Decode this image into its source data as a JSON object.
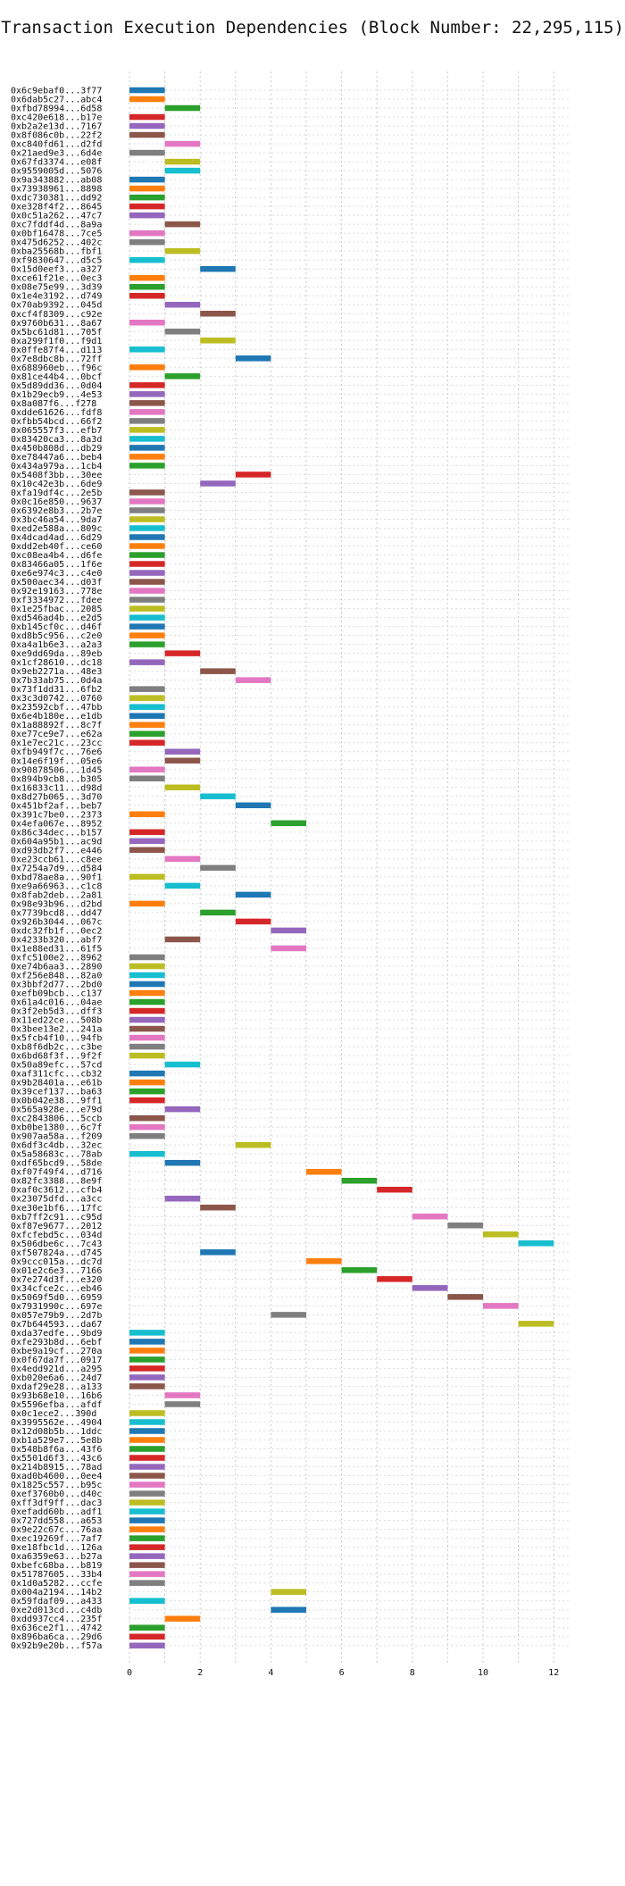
{
  "chart_data": {
    "type": "gantt",
    "title": "Transaction Execution Dependencies (Block Number: 22,295,115)",
    "xlim": [
      0,
      12.5
    ],
    "xticks": [
      0,
      2,
      4,
      6,
      8,
      10,
      12
    ],
    "grid": true,
    "palette": [
      "#1f77b4",
      "#ff7f0e",
      "#2ca02c",
      "#d62728",
      "#9467bd",
      "#8c564b",
      "#e377c2",
      "#7f7f7f",
      "#bcbd22",
      "#17becf"
    ],
    "transactions": [
      {
        "tx": "0x6c9ebaf0...3f77",
        "start": 0,
        "end": 1
      },
      {
        "tx": "0x6dab5c27...abc4",
        "start": 0,
        "end": 1
      },
      {
        "tx": "0xfbd78994...6d58",
        "start": 1,
        "end": 2
      },
      {
        "tx": "0xc420e618...b17e",
        "start": 0,
        "end": 1
      },
      {
        "tx": "0xb2a2e13d...7167",
        "start": 0,
        "end": 1
      },
      {
        "tx": "0x8f086c0b...22f2",
        "start": 0,
        "end": 1
      },
      {
        "tx": "0xc840fd61...d2fd",
        "start": 1,
        "end": 2
      },
      {
        "tx": "0x21aed9e3...6d4e",
        "start": 0,
        "end": 1
      },
      {
        "tx": "0x67fd3374...e08f",
        "start": 1,
        "end": 2
      },
      {
        "tx": "0x9559005d...5076",
        "start": 1,
        "end": 2
      },
      {
        "tx": "0x9a343882...ab08",
        "start": 0,
        "end": 1
      },
      {
        "tx": "0x73938961...8898",
        "start": 0,
        "end": 1
      },
      {
        "tx": "0xdc730381...dd92",
        "start": 0,
        "end": 1
      },
      {
        "tx": "0xe328f4f2...8645",
        "start": 0,
        "end": 1
      },
      {
        "tx": "0x0c51a262...47c7",
        "start": 0,
        "end": 1
      },
      {
        "tx": "0xc7fddf4d...8a9a",
        "start": 1,
        "end": 2
      },
      {
        "tx": "0x0bf16478...7ce5",
        "start": 0,
        "end": 1
      },
      {
        "tx": "0x475d6252...402c",
        "start": 0,
        "end": 1
      },
      {
        "tx": "0xba25568b...fbf1",
        "start": 1,
        "end": 2
      },
      {
        "tx": "0xf9830647...d5c5",
        "start": 0,
        "end": 1
      },
      {
        "tx": "0x15d0eef3...a327",
        "start": 2,
        "end": 3
      },
      {
        "tx": "0xce61f21e...0ec3",
        "start": 0,
        "end": 1
      },
      {
        "tx": "0x08e75e99...3d39",
        "start": 0,
        "end": 1
      },
      {
        "tx": "0x1e4e3192...d749",
        "start": 0,
        "end": 1
      },
      {
        "tx": "0x70ab9392...045d",
        "start": 1,
        "end": 2
      },
      {
        "tx": "0xcf4f8309...c92e",
        "start": 2,
        "end": 3
      },
      {
        "tx": "0x9760b631...8a67",
        "start": 0,
        "end": 1
      },
      {
        "tx": "0x5bc61d81...705f",
        "start": 1,
        "end": 2
      },
      {
        "tx": "0xa299f1f0...f9d1",
        "start": 2,
        "end": 3
      },
      {
        "tx": "0x0ffe87f4...d113",
        "start": 0,
        "end": 1
      },
      {
        "tx": "0x7e8dbc8b...72ff",
        "start": 3,
        "end": 4
      },
      {
        "tx": "0x688960eb...f96c",
        "start": 0,
        "end": 1
      },
      {
        "tx": "0x81ce44b4...0bcf",
        "start": 1,
        "end": 2
      },
      {
        "tx": "0x5d89dd36...0d04",
        "start": 0,
        "end": 1
      },
      {
        "tx": "0x1b29ecb9...4e53",
        "start": 0,
        "end": 1
      },
      {
        "tx": "0x8a087f6...f278",
        "start": 0,
        "end": 1
      },
      {
        "tx": "0xdde61626...fdf8",
        "start": 0,
        "end": 1
      },
      {
        "tx": "0xfbb54bcd...66f2",
        "start": 0,
        "end": 1
      },
      {
        "tx": "0x065557f3...efb7",
        "start": 0,
        "end": 1
      },
      {
        "tx": "0x83420ca3...8a3d",
        "start": 0,
        "end": 1
      },
      {
        "tx": "0x450b808d...db29",
        "start": 0,
        "end": 1
      },
      {
        "tx": "0xe78447a6...beb4",
        "start": 0,
        "end": 1
      },
      {
        "tx": "0x434a979a...1cb4",
        "start": 0,
        "end": 1
      },
      {
        "tx": "0x5408f3bb...30ee",
        "start": 3,
        "end": 4
      },
      {
        "tx": "0x10c42e3b...6de9",
        "start": 2,
        "end": 3
      },
      {
        "tx": "0xfa19df4c...2e5b",
        "start": 0,
        "end": 1
      },
      {
        "tx": "0x0c16e850...9637",
        "start": 0,
        "end": 1
      },
      {
        "tx": "0x6392e8b3...2b7e",
        "start": 0,
        "end": 1
      },
      {
        "tx": "0x3bc46a54...9da7",
        "start": 0,
        "end": 1
      },
      {
        "tx": "0xed2e588a...809c",
        "start": 0,
        "end": 1
      },
      {
        "tx": "0x4dcad4ad...6d29",
        "start": 0,
        "end": 1
      },
      {
        "tx": "0xdd2eb40f...ce60",
        "start": 0,
        "end": 1
      },
      {
        "tx": "0xc08ea4b4...d6fe",
        "start": 0,
        "end": 1
      },
      {
        "tx": "0x83466a05...1f6e",
        "start": 0,
        "end": 1
      },
      {
        "tx": "0xe6e974c3...c4e0",
        "start": 0,
        "end": 1
      },
      {
        "tx": "0x500aec34...d03f",
        "start": 0,
        "end": 1
      },
      {
        "tx": "0x92e19163...778e",
        "start": 0,
        "end": 1
      },
      {
        "tx": "0xf3334972...fdee",
        "start": 0,
        "end": 1
      },
      {
        "tx": "0x1e25fbac...2085",
        "start": 0,
        "end": 1
      },
      {
        "tx": "0xd546ad4b...e2d5",
        "start": 0,
        "end": 1
      },
      {
        "tx": "0xb145cf0c...d46f",
        "start": 0,
        "end": 1
      },
      {
        "tx": "0xd8b5c956...c2e0",
        "start": 0,
        "end": 1
      },
      {
        "tx": "0xa4a1b6e3...a2a3",
        "start": 0,
        "end": 1
      },
      {
        "tx": "0xe9dd69da...89eb",
        "start": 1,
        "end": 2
      },
      {
        "tx": "0x1cf28610...dc18",
        "start": 0,
        "end": 1
      },
      {
        "tx": "0x9eb2271a...48e3",
        "start": 2,
        "end": 3
      },
      {
        "tx": "0x7b33ab75...0d4a",
        "start": 3,
        "end": 4
      },
      {
        "tx": "0x73f1dd31...6fb2",
        "start": 0,
        "end": 1
      },
      {
        "tx": "0x3c3d0742...0760",
        "start": 0,
        "end": 1
      },
      {
        "tx": "0x23592cbf...47bb",
        "start": 0,
        "end": 1
      },
      {
        "tx": "0x6e4b180e...e1db",
        "start": 0,
        "end": 1
      },
      {
        "tx": "0x1a88892f...8c7f",
        "start": 0,
        "end": 1
      },
      {
        "tx": "0xe77ce9e7...e62a",
        "start": 0,
        "end": 1
      },
      {
        "tx": "0x1e7ec21c...23cc",
        "start": 0,
        "end": 1
      },
      {
        "tx": "0xfb949f7c...76e6",
        "start": 1,
        "end": 2
      },
      {
        "tx": "0x14e6f19f...05e6",
        "start": 1,
        "end": 2
      },
      {
        "tx": "0x90878506...1d45",
        "start": 0,
        "end": 1
      },
      {
        "tx": "0x894b9cb8...b305",
        "start": 0,
        "end": 1
      },
      {
        "tx": "0x16833c11...d98d",
        "start": 1,
        "end": 2
      },
      {
        "tx": "0x8d27b065...3d70",
        "start": 2,
        "end": 3
      },
      {
        "tx": "0x451bf2af...beb7",
        "start": 3,
        "end": 4
      },
      {
        "tx": "0x391c7be0...2373",
        "start": 0,
        "end": 1
      },
      {
        "tx": "0x4efa067e...8952",
        "start": 4,
        "end": 5
      },
      {
        "tx": "0x86c34dec...b157",
        "start": 0,
        "end": 1
      },
      {
        "tx": "0x604a95b1...ac9d",
        "start": 0,
        "end": 1
      },
      {
        "tx": "0xd93db2f7...e446",
        "start": 0,
        "end": 1
      },
      {
        "tx": "0xe23ccb61...c8ee",
        "start": 1,
        "end": 2
      },
      {
        "tx": "0x7254a7d9...d584",
        "start": 2,
        "end": 3
      },
      {
        "tx": "0xbd78ae8a...90f1",
        "start": 0,
        "end": 1
      },
      {
        "tx": "0xe9a66963...c1c8",
        "start": 1,
        "end": 2
      },
      {
        "tx": "0x8fab2deb...2a81",
        "start": 3,
        "end": 4
      },
      {
        "tx": "0x98e93b96...d2bd",
        "start": 0,
        "end": 1
      },
      {
        "tx": "0x7739bcd8...dd47",
        "start": 2,
        "end": 3
      },
      {
        "tx": "0x926b3044...067c",
        "start": 3,
        "end": 4
      },
      {
        "tx": "0xdc32fb1f...0ec2",
        "start": 4,
        "end": 5
      },
      {
        "tx": "0x4233b320...abf7",
        "start": 1,
        "end": 2
      },
      {
        "tx": "0x1e88ed31...61f5",
        "start": 4,
        "end": 5
      },
      {
        "tx": "0xfc5100e2...8962",
        "start": 0,
        "end": 1
      },
      {
        "tx": "0xe74b6aa3...2890",
        "start": 0,
        "end": 1
      },
      {
        "tx": "0xf256e848...82a0",
        "start": 0,
        "end": 1
      },
      {
        "tx": "0x3bbf2d77...2bd0",
        "start": 0,
        "end": 1
      },
      {
        "tx": "0xefb09bcb...c137",
        "start": 0,
        "end": 1
      },
      {
        "tx": "0x61a4c016...04ae",
        "start": 0,
        "end": 1
      },
      {
        "tx": "0x3f2eb5d3...dff3",
        "start": 0,
        "end": 1
      },
      {
        "tx": "0x11ed22ce...508b",
        "start": 0,
        "end": 1
      },
      {
        "tx": "0x3bee13e2...241a",
        "start": 0,
        "end": 1
      },
      {
        "tx": "0x5fcb4f10...94fb",
        "start": 0,
        "end": 1
      },
      {
        "tx": "0xb8f6db2c...c3be",
        "start": 0,
        "end": 1
      },
      {
        "tx": "0x6bd68f3f...9f2f",
        "start": 0,
        "end": 1
      },
      {
        "tx": "0x50a89efc...57cd",
        "start": 1,
        "end": 2
      },
      {
        "tx": "0xaf311cfc...cb32",
        "start": 0,
        "end": 1
      },
      {
        "tx": "0x9b28401a...e61b",
        "start": 0,
        "end": 1
      },
      {
        "tx": "0x39cef137...ba63",
        "start": 0,
        "end": 1
      },
      {
        "tx": "0x0b042e38...9ff1",
        "start": 0,
        "end": 1
      },
      {
        "tx": "0x565a928e...e79d",
        "start": 1,
        "end": 2
      },
      {
        "tx": "0xc2843806...5ccb",
        "start": 0,
        "end": 1
      },
      {
        "tx": "0xb0be1380...6c7f",
        "start": 0,
        "end": 1
      },
      {
        "tx": "0x907aa58a...f209",
        "start": 0,
        "end": 1
      },
      {
        "tx": "0x6df3c4db...32ec",
        "start": 3,
        "end": 4
      },
      {
        "tx": "0x5a58683c...78ab",
        "start": 0,
        "end": 1
      },
      {
        "tx": "0xdf65bcd9...58de",
        "start": 1,
        "end": 2
      },
      {
        "tx": "0xf07f49f4...d716",
        "start": 5,
        "end": 6
      },
      {
        "tx": "0x82fc3388...8e9f",
        "start": 6,
        "end": 7
      },
      {
        "tx": "0xaf0c3612...cfb4",
        "start": 7,
        "end": 8
      },
      {
        "tx": "0x23075dfd...a3cc",
        "start": 1,
        "end": 2
      },
      {
        "tx": "0xe30e1bf6...17fc",
        "start": 2,
        "end": 3
      },
      {
        "tx": "0xb7ff2c91...c95d",
        "start": 8,
        "end": 9
      },
      {
        "tx": "0xf87e9677...2012",
        "start": 9,
        "end": 10
      },
      {
        "tx": "0xfcfebd5c...034d",
        "start": 10,
        "end": 11
      },
      {
        "tx": "0x506dbe6c...7c43",
        "start": 11,
        "end": 12
      },
      {
        "tx": "0xf507824a...d745",
        "start": 2,
        "end": 3
      },
      {
        "tx": "0x9ccc015a...dc7d",
        "start": 5,
        "end": 6
      },
      {
        "tx": "0x01e2c6e3...7166",
        "start": 6,
        "end": 7
      },
      {
        "tx": "0x7e274d3f...e320",
        "start": 7,
        "end": 8
      },
      {
        "tx": "0x34cfce2c...eb46",
        "start": 8,
        "end": 9
      },
      {
        "tx": "0x5069f5d0...6959",
        "start": 9,
        "end": 10
      },
      {
        "tx": "0x7931990c...697e",
        "start": 10,
        "end": 11
      },
      {
        "tx": "0x057e79b9...2d7b",
        "start": 4,
        "end": 5
      },
      {
        "tx": "0x7b644593...da67",
        "start": 11,
        "end": 12
      },
      {
        "tx": "0xda37edfe...9bd9",
        "start": 0,
        "end": 1
      },
      {
        "tx": "0xfe293b8d...6ebf",
        "start": 0,
        "end": 1
      },
      {
        "tx": "0xbe9a19cf...270a",
        "start": 0,
        "end": 1
      },
      {
        "tx": "0x0f67da7f...0917",
        "start": 0,
        "end": 1
      },
      {
        "tx": "0x4edd921d...a295",
        "start": 0,
        "end": 1
      },
      {
        "tx": "0xb020e6a6...24d7",
        "start": 0,
        "end": 1
      },
      {
        "tx": "0xdaf29e28...a133",
        "start": 0,
        "end": 1
      },
      {
        "tx": "0x93b68e10...16b6",
        "start": 1,
        "end": 2
      },
      {
        "tx": "0x5596efba...afdf",
        "start": 1,
        "end": 2
      },
      {
        "tx": "0x0c1ece2...390d",
        "start": 0,
        "end": 1
      },
      {
        "tx": "0x3995562e...4904",
        "start": 0,
        "end": 1
      },
      {
        "tx": "0x12d08b5b...1ddc",
        "start": 0,
        "end": 1
      },
      {
        "tx": "0xb1a529e7...5e8b",
        "start": 0,
        "end": 1
      },
      {
        "tx": "0x548b8f6a...43f6",
        "start": 0,
        "end": 1
      },
      {
        "tx": "0x5501d6f3...43c6",
        "start": 0,
        "end": 1
      },
      {
        "tx": "0x214b8915...78ad",
        "start": 0,
        "end": 1
      },
      {
        "tx": "0xad0b4600...0ee4",
        "start": 0,
        "end": 1
      },
      {
        "tx": "0x1825c557...b95c",
        "start": 0,
        "end": 1
      },
      {
        "tx": "0xef3760b0...d40c",
        "start": 0,
        "end": 1
      },
      {
        "tx": "0xff3df9ff...dac3",
        "start": 0,
        "end": 1
      },
      {
        "tx": "0xefadd60b...adf1",
        "start": 0,
        "end": 1
      },
      {
        "tx": "0x727dd558...a653",
        "start": 0,
        "end": 1
      },
      {
        "tx": "0x9e22c67c...76aa",
        "start": 0,
        "end": 1
      },
      {
        "tx": "0xec19269f...7af7",
        "start": 0,
        "end": 1
      },
      {
        "tx": "0xe18fbc1d...126a",
        "start": 0,
        "end": 1
      },
      {
        "tx": "0xa6359e63...b27a",
        "start": 0,
        "end": 1
      },
      {
        "tx": "0xbefc68ba...b819",
        "start": 0,
        "end": 1
      },
      {
        "tx": "0x51787605...33b4",
        "start": 0,
        "end": 1
      },
      {
        "tx": "0x1d0a5282...ccfe",
        "start": 0,
        "end": 1
      },
      {
        "tx": "0x004a2194...14b2",
        "start": 4,
        "end": 5
      },
      {
        "tx": "0x59fdaf09...a433",
        "start": 0,
        "end": 1
      },
      {
        "tx": "0xe2d013cd...c4db",
        "start": 4,
        "end": 5
      },
      {
        "tx": "0xdd937cc4...235f",
        "start": 1,
        "end": 2
      },
      {
        "tx": "0x636ce2f1...4742",
        "start": 0,
        "end": 1
      },
      {
        "tx": "0x896ba6ca...29d6",
        "start": 0,
        "end": 1
      },
      {
        "tx": "0x92b9e20b...f57a",
        "start": 0,
        "end": 1
      }
    ]
  }
}
